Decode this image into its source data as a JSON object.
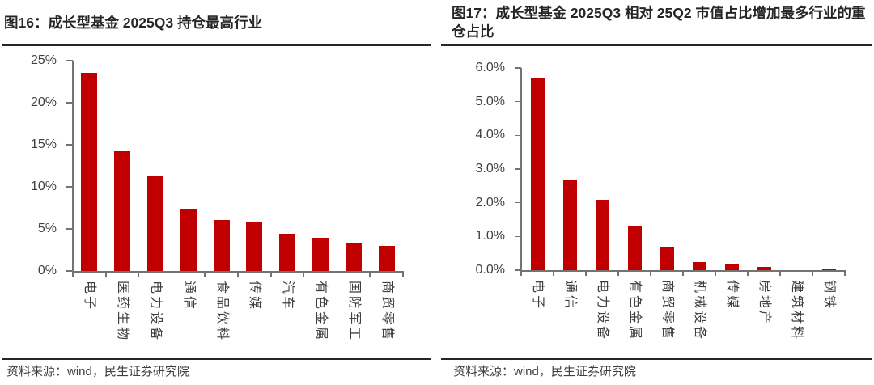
{
  "colors": {
    "bar": "#c00000",
    "bar_faint": "#c00000",
    "axis": "#737373",
    "tick_text": "#3f3f3f",
    "title_text": "#262626",
    "rule": "#262626",
    "source_text": "#3f3f3f"
  },
  "chart_data": [
    {
      "id": "figure-16",
      "type": "bar",
      "title": "图16：成长型基金 2025Q3 持仓最高行业",
      "categories": [
        "电子",
        "医药生物",
        "电力设备",
        "通信",
        "食品饮料",
        "传媒",
        "汽车",
        "有色金属",
        "国防军工",
        "商贸零售"
      ],
      "values": [
        23.6,
        14.2,
        11.3,
        7.3,
        6.1,
        5.8,
        4.4,
        3.9,
        3.4,
        3.0
      ],
      "unit": "%",
      "ylim": [
        0,
        25
      ],
      "ytick_values": [
        0,
        5,
        10,
        15,
        20,
        25
      ],
      "ytick_labels": [
        "0%",
        "5%",
        "10%",
        "15%",
        "20%",
        "25%"
      ],
      "grid": false,
      "legend": "none",
      "bar_color": "#c00000",
      "source": "资料来源：wind，民生证券研究院"
    },
    {
      "id": "figure-17",
      "type": "bar",
      "title": "图17：成长型基金 2025Q3 相对 25Q2 市值占比增加最多行业的重仓占比",
      "categories": [
        "电子",
        "通信",
        "电力设备",
        "有色金属",
        "商贸零售",
        "机械设备",
        "传媒",
        "房地产",
        "建筑材料",
        "钢铁"
      ],
      "values": [
        5.7,
        2.7,
        2.1,
        1.3,
        0.7,
        0.25,
        0.2,
        0.1,
        0.0,
        0.02
      ],
      "unit": "%",
      "ylim": [
        0,
        6
      ],
      "ytick_values": [
        0,
        1,
        2,
        3,
        4,
        5,
        6
      ],
      "ytick_labels": [
        "0.0%",
        "1.0%",
        "2.0%",
        "3.0%",
        "4.0%",
        "5.0%",
        "6.0%"
      ],
      "grid": false,
      "legend": "none",
      "bar_color": "#c00000",
      "source": "资料来源：wind，民生证券研究院"
    }
  ]
}
